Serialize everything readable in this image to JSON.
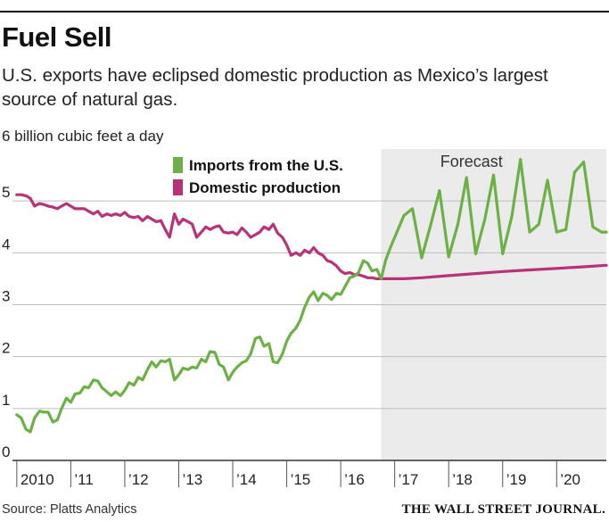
{
  "header": {
    "title": "Fuel Sell",
    "subtitle": "U.S. exports have eclipsed domestic production as Mexico’s largest source of natural gas."
  },
  "footer": {
    "source": "Source: Platts Analytics",
    "brand": "THE WALL STREET JOURNAL."
  },
  "chart_data": {
    "type": "line",
    "title": "Fuel Sell",
    "ylabel": "",
    "y_unit_label": "6 billion cubic feet a day",
    "ylim": [
      0,
      6
    ],
    "xlim": [
      2009.92,
      2020.92
    ],
    "grid": true,
    "legend_position": "top-left",
    "y_ticks": [
      {
        "value": 0,
        "label": "0"
      },
      {
        "value": 1,
        "label": "1"
      },
      {
        "value": 2,
        "label": "2"
      },
      {
        "value": 3,
        "label": "3"
      },
      {
        "value": 4,
        "label": "4"
      },
      {
        "value": 5,
        "label": "5"
      }
    ],
    "x_ticks": [
      {
        "value": 2010,
        "label": "2010"
      },
      {
        "value": 2011,
        "label": "’11"
      },
      {
        "value": 2012,
        "label": "’12"
      },
      {
        "value": 2013,
        "label": "’13"
      },
      {
        "value": 2014,
        "label": "’14"
      },
      {
        "value": 2015,
        "label": "’15"
      },
      {
        "value": 2016,
        "label": "’16"
      },
      {
        "value": 2017,
        "label": "’17"
      },
      {
        "value": 2018,
        "label": "’18"
      },
      {
        "value": 2019,
        "label": "’19"
      },
      {
        "value": 2020,
        "label": "’20"
      }
    ],
    "forecast": {
      "label": "Forecast",
      "start": 2016.75,
      "end": 2020.92,
      "color": "#ebebeb"
    },
    "series": [
      {
        "name": "Imports from the U.S.",
        "color": "#6bb145",
        "x": [
          2010.0,
          2010.08,
          2010.17,
          2010.25,
          2010.33,
          2010.42,
          2010.5,
          2010.58,
          2010.67,
          2010.75,
          2010.83,
          2010.92,
          2011.0,
          2011.08,
          2011.17,
          2011.25,
          2011.33,
          2011.42,
          2011.5,
          2011.58,
          2011.67,
          2011.75,
          2011.83,
          2011.92,
          2012.0,
          2012.08,
          2012.17,
          2012.25,
          2012.33,
          2012.42,
          2012.5,
          2012.58,
          2012.67,
          2012.75,
          2012.83,
          2012.92,
          2013.0,
          2013.08,
          2013.17,
          2013.25,
          2013.33,
          2013.42,
          2013.5,
          2013.58,
          2013.67,
          2013.75,
          2013.83,
          2013.92,
          2014.0,
          2014.08,
          2014.17,
          2014.25,
          2014.33,
          2014.42,
          2014.5,
          2014.58,
          2014.67,
          2014.75,
          2014.83,
          2014.92,
          2015.0,
          2015.08,
          2015.17,
          2015.25,
          2015.33,
          2015.42,
          2015.5,
          2015.58,
          2015.67,
          2015.75,
          2015.83,
          2015.92,
          2016.0,
          2016.08,
          2016.17,
          2016.25,
          2016.33,
          2016.42,
          2016.5,
          2016.58,
          2016.67,
          2016.75,
          2016.83,
          2016.92,
          2017.0,
          2017.17,
          2017.33,
          2017.5,
          2017.67,
          2017.83,
          2018.0,
          2018.17,
          2018.33,
          2018.5,
          2018.67,
          2018.83,
          2019.0,
          2019.17,
          2019.33,
          2019.5,
          2019.67,
          2019.83,
          2020.0,
          2020.17,
          2020.33,
          2020.5,
          2020.67,
          2020.83,
          2020.92
        ],
        "values": [
          0.88,
          0.82,
          0.6,
          0.55,
          0.82,
          0.95,
          0.93,
          0.93,
          0.74,
          0.78,
          1.0,
          1.2,
          1.12,
          1.28,
          1.3,
          1.42,
          1.4,
          1.55,
          1.53,
          1.4,
          1.32,
          1.25,
          1.32,
          1.25,
          1.35,
          1.5,
          1.45,
          1.6,
          1.55,
          1.75,
          1.9,
          1.8,
          1.92,
          1.9,
          1.95,
          1.55,
          1.65,
          1.78,
          1.75,
          1.8,
          1.78,
          1.95,
          1.9,
          2.1,
          2.08,
          1.85,
          1.8,
          1.55,
          1.7,
          1.8,
          1.88,
          1.92,
          2.05,
          2.35,
          2.38,
          2.2,
          2.25,
          1.9,
          1.88,
          2.05,
          2.3,
          2.45,
          2.55,
          2.7,
          2.95,
          3.15,
          3.25,
          3.08,
          3.22,
          3.18,
          3.1,
          3.22,
          3.2,
          3.35,
          3.52,
          3.55,
          3.62,
          3.85,
          3.8,
          3.65,
          3.68,
          3.5,
          3.85,
          4.1,
          4.3,
          4.72,
          4.85,
          3.9,
          4.55,
          5.2,
          3.92,
          4.55,
          5.45,
          3.98,
          4.65,
          5.5,
          3.98,
          4.7,
          5.8,
          4.4,
          4.55,
          5.4,
          4.4,
          4.45,
          5.55,
          5.75,
          4.5,
          4.4,
          4.4
        ]
      },
      {
        "name": "Domestic production",
        "color": "#b83278",
        "x": [
          2010.0,
          2010.08,
          2010.17,
          2010.25,
          2010.33,
          2010.42,
          2010.5,
          2010.58,
          2010.67,
          2010.75,
          2010.83,
          2010.92,
          2011.0,
          2011.08,
          2011.17,
          2011.25,
          2011.33,
          2011.42,
          2011.5,
          2011.58,
          2011.67,
          2011.75,
          2011.83,
          2011.92,
          2012.0,
          2012.08,
          2012.17,
          2012.25,
          2012.33,
          2012.42,
          2012.5,
          2012.58,
          2012.67,
          2012.75,
          2012.83,
          2012.92,
          2013.0,
          2013.08,
          2013.17,
          2013.25,
          2013.33,
          2013.42,
          2013.5,
          2013.58,
          2013.67,
          2013.75,
          2013.83,
          2013.92,
          2014.0,
          2014.08,
          2014.17,
          2014.25,
          2014.33,
          2014.42,
          2014.5,
          2014.58,
          2014.67,
          2014.75,
          2014.83,
          2014.92,
          2015.0,
          2015.08,
          2015.17,
          2015.25,
          2015.33,
          2015.42,
          2015.5,
          2015.58,
          2015.67,
          2015.75,
          2015.83,
          2015.92,
          2016.0,
          2016.08,
          2016.17,
          2016.25,
          2016.33,
          2016.42,
          2016.5,
          2016.58,
          2016.67,
          2016.75,
          2016.83,
          2016.92,
          2017.0,
          2017.17,
          2017.5,
          2018.0,
          2018.5,
          2019.0,
          2019.5,
          2020.0,
          2020.5,
          2020.92
        ],
        "values": [
          5.12,
          5.12,
          5.1,
          5.05,
          4.9,
          4.95,
          4.93,
          4.9,
          4.88,
          4.85,
          4.9,
          4.95,
          4.9,
          4.85,
          4.85,
          4.85,
          4.8,
          4.75,
          4.8,
          4.7,
          4.75,
          4.72,
          4.75,
          4.72,
          4.78,
          4.7,
          4.68,
          4.7,
          4.62,
          4.7,
          4.65,
          4.6,
          4.62,
          4.45,
          4.3,
          4.75,
          4.55,
          4.65,
          4.6,
          4.55,
          4.3,
          4.4,
          4.5,
          4.45,
          4.5,
          4.52,
          4.4,
          4.38,
          4.4,
          4.35,
          4.48,
          4.4,
          4.3,
          4.35,
          4.4,
          4.5,
          4.45,
          4.55,
          4.38,
          4.3,
          4.15,
          3.95,
          4.0,
          3.95,
          4.05,
          4.0,
          4.1,
          4.0,
          3.95,
          3.85,
          3.82,
          3.75,
          3.65,
          3.6,
          3.62,
          3.58,
          3.58,
          3.55,
          3.52,
          3.52,
          3.5,
          3.5,
          3.5,
          3.5,
          3.5,
          3.5,
          3.52,
          3.56,
          3.6,
          3.64,
          3.67,
          3.7,
          3.73,
          3.76
        ]
      }
    ]
  }
}
